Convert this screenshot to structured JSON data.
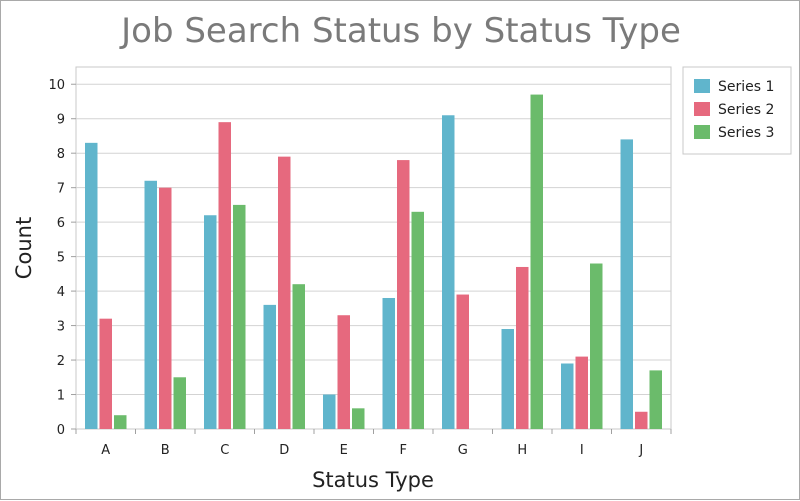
{
  "chart_data": {
    "type": "bar",
    "title": "Job Search Status by Status Type",
    "xlabel": "Status Type",
    "ylabel": "Count",
    "categories": [
      "A",
      "B",
      "C",
      "D",
      "E",
      "F",
      "G",
      "H",
      "I",
      "J"
    ],
    "ylim": [
      0,
      10.5
    ],
    "yticks": [
      0,
      1,
      2,
      3,
      4,
      5,
      6,
      7,
      8,
      9,
      10
    ],
    "grid": true,
    "legend_position": "top-right",
    "series": [
      {
        "name": "Series 1",
        "color": "#60b5cc",
        "values": [
          8.3,
          7.2,
          6.2,
          3.6,
          1.0,
          3.8,
          9.1,
          2.9,
          1.9,
          8.4
        ]
      },
      {
        "name": "Series 2",
        "color": "#e6697e",
        "values": [
          3.2,
          7.0,
          8.9,
          7.9,
          3.3,
          7.8,
          3.9,
          4.7,
          2.1,
          0.5
        ]
      },
      {
        "name": "Series 3",
        "color": "#6bbb6b",
        "values": [
          0.4,
          1.5,
          6.5,
          4.2,
          0.6,
          6.3,
          0.0,
          9.7,
          4.8,
          1.7
        ]
      }
    ]
  }
}
